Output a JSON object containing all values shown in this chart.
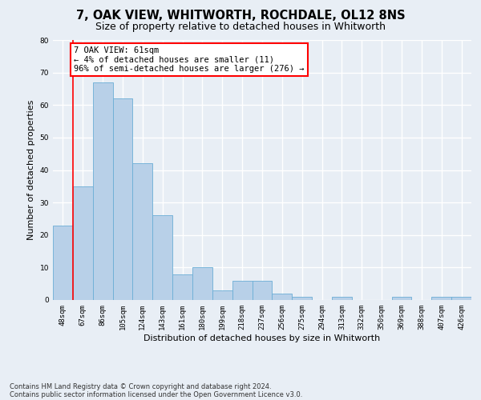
{
  "title": "7, OAK VIEW, WHITWORTH, ROCHDALE, OL12 8NS",
  "subtitle": "Size of property relative to detached houses in Whitworth",
  "xlabel": "Distribution of detached houses by size in Whitworth",
  "ylabel": "Number of detached properties",
  "categories": [
    "48sqm",
    "67sqm",
    "86sqm",
    "105sqm",
    "124sqm",
    "143sqm",
    "161sqm",
    "180sqm",
    "199sqm",
    "218sqm",
    "237sqm",
    "256sqm",
    "275sqm",
    "294sqm",
    "313sqm",
    "332sqm",
    "350sqm",
    "369sqm",
    "388sqm",
    "407sqm",
    "426sqm"
  ],
  "values": [
    23,
    35,
    67,
    62,
    42,
    26,
    8,
    10,
    3,
    6,
    6,
    2,
    1,
    0,
    1,
    0,
    0,
    1,
    0,
    1,
    1
  ],
  "bar_color": "#b8d0e8",
  "bar_edge_color": "#6baed6",
  "ylim": [
    0,
    80
  ],
  "yticks": [
    0,
    10,
    20,
    30,
    40,
    50,
    60,
    70,
    80
  ],
  "annotation_line1": "7 OAK VIEW: 61sqm",
  "annotation_line2": "← 4% of detached houses are smaller (11)",
  "annotation_line3": "96% of semi-detached houses are larger (276) →",
  "footer1": "Contains HM Land Registry data © Crown copyright and database right 2024.",
  "footer2": "Contains public sector information licensed under the Open Government Licence v3.0.",
  "background_color": "#e8eef5",
  "plot_bg_color": "#e8eef5",
  "grid_color": "#ffffff",
  "title_fontsize": 10.5,
  "subtitle_fontsize": 9,
  "axis_label_fontsize": 8,
  "tick_fontsize": 6.5,
  "footer_fontsize": 6,
  "annot_fontsize": 7.5
}
